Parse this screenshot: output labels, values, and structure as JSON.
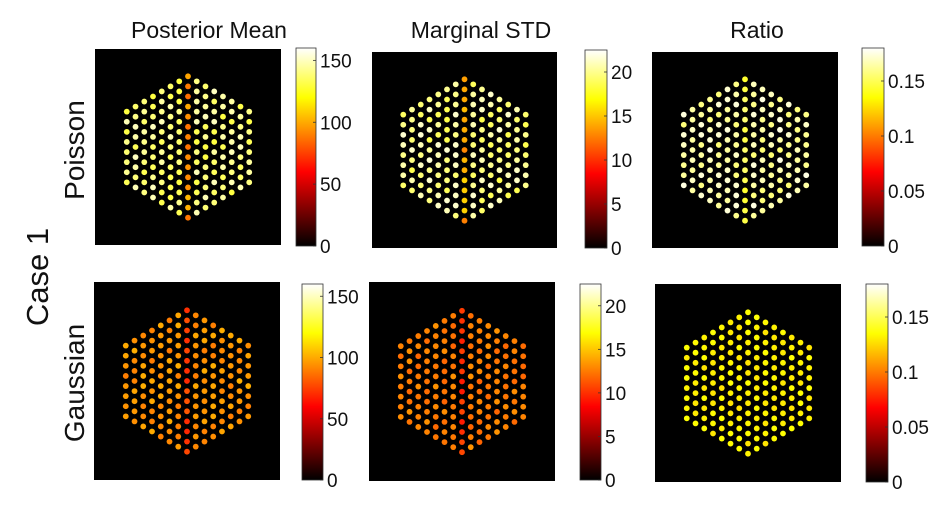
{
  "figure": {
    "row_group_label": "Case 1",
    "column_titles": [
      "Posterior Mean",
      "Marginal STD",
      "Ratio"
    ],
    "row_labels": [
      "Poisson",
      "Gaussian"
    ]
  },
  "chart_data": [
    {
      "type": "heatmap",
      "row": "Poisson",
      "column": "Posterior Mean",
      "colormap": "hot",
      "clim": [
        0,
        160
      ],
      "colorbar_ticks": [
        0,
        50,
        100,
        150
      ],
      "colorbar_tick_labels": [
        "0",
        "50",
        "100",
        "150"
      ],
      "layout": "hexagonal pixel array",
      "rows_per_side": 8,
      "base_value": 140,
      "center_column_value": 95,
      "value_variation": 10
    },
    {
      "type": "heatmap",
      "row": "Poisson",
      "column": "Marginal STD",
      "colormap": "hot",
      "clim": [
        0,
        22.5
      ],
      "colorbar_ticks": [
        0,
        5,
        10,
        15,
        20
      ],
      "colorbar_tick_labels": [
        "0",
        "5",
        "10",
        "15",
        "20"
      ],
      "layout": "hexagonal pixel array",
      "rows_per_side": 8,
      "base_value": 20,
      "center_column_value": 14,
      "value_variation": 1.5
    },
    {
      "type": "heatmap",
      "row": "Poisson",
      "column": "Ratio",
      "colormap": "hot",
      "clim": [
        0,
        0.18
      ],
      "colorbar_ticks": [
        0,
        0.05,
        0.1,
        0.15
      ],
      "colorbar_tick_labels": [
        "0",
        "0.05",
        "0.1",
        "0.15"
      ],
      "layout": "hexagonal pixel array",
      "rows_per_side": 8,
      "base_value": 0.165,
      "center_column_value": 0.148,
      "value_variation": 0.01
    },
    {
      "type": "heatmap",
      "row": "Gaussian",
      "column": "Posterior Mean",
      "colormap": "hot",
      "clim": [
        0,
        160
      ],
      "colorbar_ticks": [
        0,
        50,
        100,
        150
      ],
      "colorbar_tick_labels": [
        "0",
        "50",
        "100",
        "150"
      ],
      "layout": "hexagonal pixel array",
      "rows_per_side": 8,
      "base_value": 95,
      "center_column_value": 75,
      "value_variation": 6
    },
    {
      "type": "heatmap",
      "row": "Gaussian",
      "column": "Marginal STD",
      "colormap": "hot",
      "clim": [
        0,
        22.5
      ],
      "colorbar_ticks": [
        0,
        5,
        10,
        15,
        20
      ],
      "colorbar_tick_labels": [
        "0",
        "5",
        "10",
        "15",
        "20"
      ],
      "layout": "hexagonal pixel array",
      "rows_per_side": 8,
      "base_value": 12.5,
      "center_column_value": 10,
      "value_variation": 0.8
    },
    {
      "type": "heatmap",
      "row": "Gaussian",
      "column": "Ratio",
      "colormap": "hot",
      "clim": [
        0,
        0.18
      ],
      "colorbar_ticks": [
        0,
        0.05,
        0.1,
        0.15
      ],
      "colorbar_tick_labels": [
        "0",
        "0.05",
        "0.1",
        "0.15"
      ],
      "layout": "hexagonal pixel array",
      "rows_per_side": 8,
      "base_value": 0.132,
      "center_column_value": 0.132,
      "value_variation": 0.004
    }
  ]
}
